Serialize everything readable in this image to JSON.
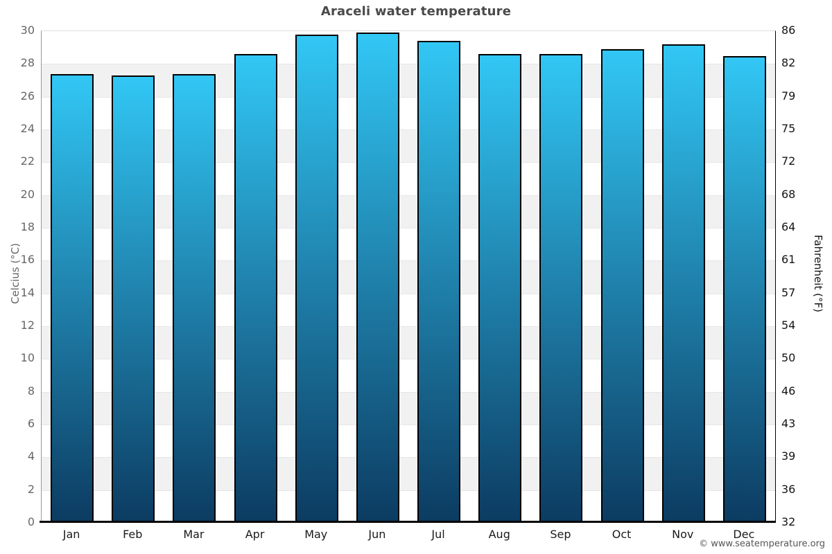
{
  "title": "Araceli water temperature",
  "footer": {
    "copyright": "© www.seatemperature.org"
  },
  "chart_data": {
    "type": "bar",
    "title": "Araceli water temperature",
    "categories": [
      "Jan",
      "Feb",
      "Mar",
      "Apr",
      "May",
      "Jun",
      "Jul",
      "Aug",
      "Sep",
      "Oct",
      "Nov",
      "Dec"
    ],
    "values": [
      27.4,
      27.3,
      27.4,
      28.6,
      29.8,
      29.9,
      29.4,
      28.6,
      28.6,
      28.9,
      29.2,
      28.5
    ],
    "unit": "°C",
    "xlabel": "",
    "ylabel_left": "Celcius (°C)",
    "ylabel_right": "Fahrenheit (°F)",
    "ylim": [
      0,
      30
    ],
    "y_left_ticks": [
      0,
      2,
      4,
      6,
      8,
      10,
      12,
      14,
      16,
      18,
      20,
      22,
      24,
      26,
      28,
      30
    ],
    "y_right_ticks": [
      32,
      36,
      39,
      43,
      46,
      50,
      54,
      57,
      61,
      64,
      68,
      72,
      75,
      79,
      82,
      86
    ],
    "grid": "alternating horizontal bands every 2°C",
    "legend": null,
    "colors": {
      "bar_gradient_top": "#32c7f5",
      "bar_gradient_bottom": "#0c3b61",
      "bar_border": "#000000",
      "band_gray": "#f1f1f1",
      "band_white": "#ffffff",
      "gridline": "#e6e6e6",
      "axis_left_line": "#9a9a9a",
      "axis_right_line": "#000000",
      "axis_bottom_line": "#000000",
      "title_text": "#4a4a4a",
      "left_tick_text": "#666666",
      "right_tick_text": "#141414",
      "month_text": "#1a1a1a",
      "footer_text": "#555555"
    }
  }
}
